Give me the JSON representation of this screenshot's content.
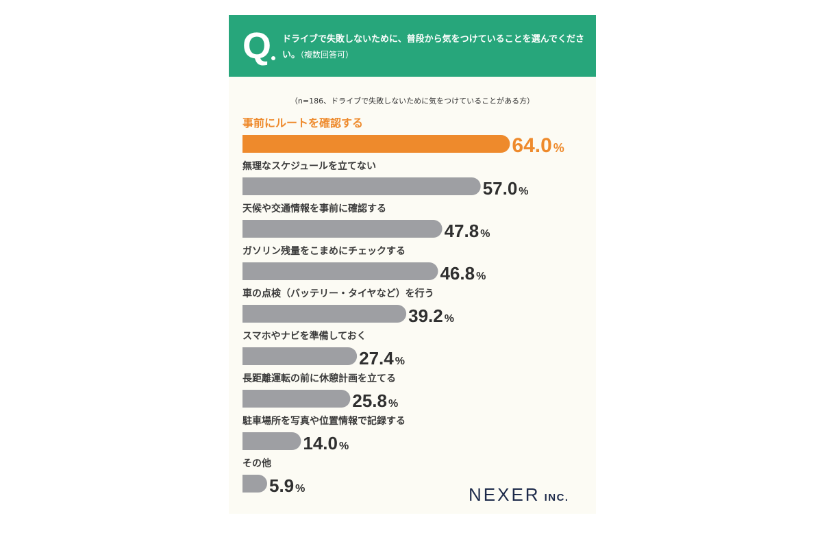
{
  "question": {
    "letter": "Q",
    "text": "ドライブで失敗しないために、普段から気をつけていることを選んでください。",
    "note": "（複数回答可）"
  },
  "sample_note": "（n=186、ドライブで失敗しないために気をつけていることがある方）",
  "logo": {
    "name": "NEXER",
    "suffix": "INC."
  },
  "colors": {
    "highlight": "#ee8a2c",
    "bar": "#9e9fa3",
    "header": "#27a67b",
    "text": "#3a3a3a"
  },
  "chart_data": {
    "type": "bar",
    "orientation": "horizontal",
    "unit": "%",
    "categories": [
      "事前にルートを確認する",
      "無理なスケジュールを立てない",
      "天候や交通情報を事前に確認する",
      "ガソリン残量をこまめにチェックする",
      "車の点検（バッテリー・タイヤなど）を行う",
      "スマホやナビを準備しておく",
      "長距離運転の前に休憩計画を立てる",
      "駐車場所を写真や位置情報で記録する",
      "その他"
    ],
    "values": [
      "64.0",
      "57.0",
      "47.8",
      "46.8",
      "39.2",
      "27.4",
      "25.8",
      "14.0",
      "5.9"
    ],
    "highlight_index": 0,
    "grid": false,
    "legend": "none"
  }
}
